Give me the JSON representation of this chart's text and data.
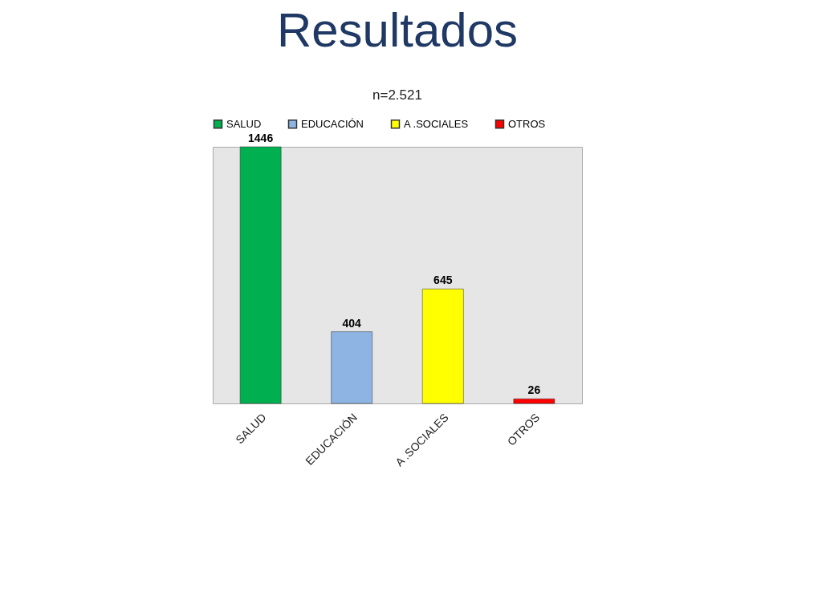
{
  "chart_data": {
    "type": "bar",
    "title": "Resultados",
    "subtitle": "n=2.521",
    "categories": [
      "SALUD",
      "EDUCACIÓN",
      "A .SOCIALES",
      "OTROS"
    ],
    "series": [
      {
        "name": "SALUD",
        "color": "#00b050",
        "values": [
          1446,
          null,
          null,
          null
        ]
      },
      {
        "name": "EDUCACIÓN",
        "color": "#8eb4e3",
        "values": [
          null,
          404,
          null,
          null
        ]
      },
      {
        "name": "A .SOCIALES",
        "color": "#ffff00",
        "values": [
          null,
          null,
          645,
          null
        ]
      },
      {
        "name": "OTROS",
        "color": "#ff0000",
        "values": [
          null,
          null,
          null,
          26
        ]
      }
    ],
    "data_labels": true,
    "legend": "top",
    "grid": false
  }
}
